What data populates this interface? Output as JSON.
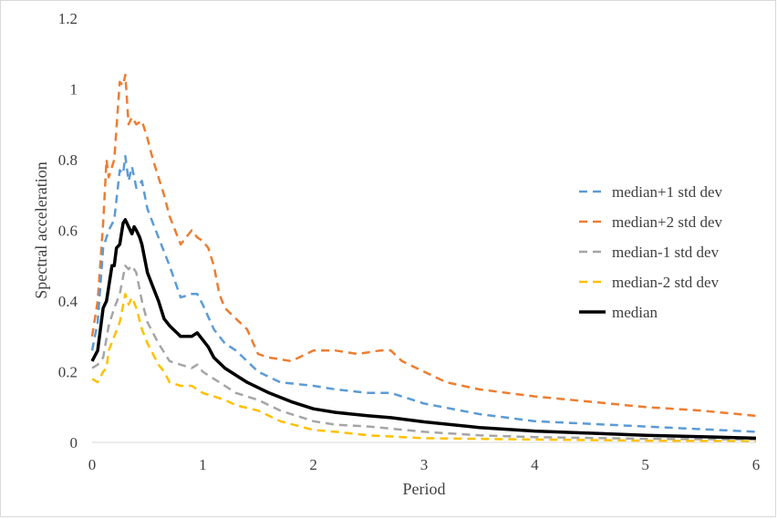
{
  "chart_data": {
    "type": "line",
    "title": "",
    "xlabel": "Period",
    "ylabel": "Spectral acceleration",
    "xlim": [
      0,
      6
    ],
    "ylim": [
      0,
      1.2
    ],
    "xticks": [
      "0",
      "1",
      "2",
      "3",
      "4",
      "5",
      "6"
    ],
    "yticks": [
      "0",
      "0.2",
      "0.4",
      "0.6",
      "0.8",
      "1",
      "1.2"
    ],
    "grid": false,
    "legend_position": "right",
    "series": [
      {
        "name": "median+1 std dev",
        "color": "#5b9bd5",
        "dash": "dashed",
        "x": [
          0,
          0.05,
          0.1,
          0.15,
          0.2,
          0.25,
          0.28,
          0.3,
          0.33,
          0.36,
          0.4,
          0.45,
          0.5,
          0.55,
          0.6,
          0.7,
          0.8,
          0.9,
          0.95,
          1.0,
          1.1,
          1.2,
          1.3,
          1.4,
          1.5,
          1.7,
          2.0,
          2.2,
          2.5,
          2.7,
          3.0,
          3.5,
          4.0,
          5.0,
          6.0
        ],
        "y": [
          0.26,
          0.34,
          0.55,
          0.6,
          0.63,
          0.77,
          0.76,
          0.81,
          0.74,
          0.78,
          0.72,
          0.74,
          0.66,
          0.62,
          0.58,
          0.5,
          0.41,
          0.42,
          0.42,
          0.39,
          0.32,
          0.28,
          0.26,
          0.23,
          0.2,
          0.17,
          0.16,
          0.15,
          0.14,
          0.14,
          0.11,
          0.08,
          0.06,
          0.045,
          0.03
        ]
      },
      {
        "name": "median+2 std dev",
        "color": "#ed7d31",
        "dash": "dashed",
        "x": [
          0,
          0.05,
          0.1,
          0.13,
          0.15,
          0.2,
          0.25,
          0.28,
          0.3,
          0.33,
          0.36,
          0.4,
          0.45,
          0.5,
          0.55,
          0.6,
          0.65,
          0.7,
          0.75,
          0.8,
          0.85,
          0.9,
          0.95,
          1.0,
          1.05,
          1.1,
          1.15,
          1.2,
          1.3,
          1.4,
          1.5,
          1.6,
          1.8,
          2.0,
          2.2,
          2.4,
          2.6,
          2.7,
          2.8,
          3.0,
          3.2,
          3.5,
          4.0,
          4.5,
          5.0,
          5.5,
          6.0
        ],
        "y": [
          0.3,
          0.4,
          0.62,
          0.8,
          0.75,
          0.8,
          1.02,
          1.01,
          1.04,
          0.9,
          0.92,
          0.9,
          0.91,
          0.86,
          0.8,
          0.75,
          0.7,
          0.64,
          0.6,
          0.56,
          0.58,
          0.6,
          0.58,
          0.57,
          0.55,
          0.5,
          0.42,
          0.38,
          0.35,
          0.32,
          0.25,
          0.24,
          0.23,
          0.26,
          0.26,
          0.25,
          0.26,
          0.26,
          0.23,
          0.2,
          0.17,
          0.15,
          0.13,
          0.115,
          0.1,
          0.09,
          0.075
        ]
      },
      {
        "name": "median-1 std dev",
        "color": "#a5a5a5",
        "dash": "dashed",
        "x": [
          0,
          0.05,
          0.1,
          0.15,
          0.2,
          0.25,
          0.3,
          0.33,
          0.36,
          0.4,
          0.45,
          0.5,
          0.55,
          0.6,
          0.7,
          0.8,
          0.9,
          0.95,
          1.0,
          1.1,
          1.2,
          1.3,
          1.4,
          1.5,
          1.7,
          2.0,
          2.2,
          2.5,
          3.0,
          3.5,
          4.0,
          5.0,
          6.0
        ],
        "y": [
          0.21,
          0.22,
          0.24,
          0.33,
          0.38,
          0.42,
          0.5,
          0.49,
          0.5,
          0.48,
          0.4,
          0.34,
          0.31,
          0.28,
          0.23,
          0.22,
          0.21,
          0.22,
          0.2,
          0.18,
          0.16,
          0.14,
          0.13,
          0.12,
          0.09,
          0.06,
          0.05,
          0.045,
          0.03,
          0.02,
          0.015,
          0.01,
          0.008
        ]
      },
      {
        "name": "median-2 std dev",
        "color": "#ffc000",
        "dash": "dashed",
        "x": [
          0,
          0.05,
          0.1,
          0.13,
          0.15,
          0.2,
          0.25,
          0.3,
          0.33,
          0.36,
          0.4,
          0.45,
          0.5,
          0.55,
          0.6,
          0.65,
          0.7,
          0.8,
          0.9,
          1.0,
          1.1,
          1.2,
          1.3,
          1.5,
          1.7,
          2.0,
          2.2,
          2.5,
          3.0,
          3.5,
          4.0,
          5.0,
          6.0
        ],
        "y": [
          0.18,
          0.17,
          0.2,
          0.21,
          0.26,
          0.3,
          0.34,
          0.42,
          0.39,
          0.41,
          0.38,
          0.32,
          0.28,
          0.25,
          0.22,
          0.2,
          0.17,
          0.16,
          0.16,
          0.14,
          0.13,
          0.12,
          0.105,
          0.09,
          0.06,
          0.035,
          0.03,
          0.02,
          0.012,
          0.01,
          0.008,
          0.005,
          0.003
        ]
      },
      {
        "name": "median",
        "color": "#000000",
        "dash": "solid",
        "x": [
          0,
          0.05,
          0.1,
          0.13,
          0.15,
          0.18,
          0.2,
          0.22,
          0.25,
          0.28,
          0.3,
          0.33,
          0.36,
          0.38,
          0.4,
          0.43,
          0.45,
          0.5,
          0.55,
          0.6,
          0.65,
          0.7,
          0.8,
          0.9,
          0.95,
          1.0,
          1.05,
          1.1,
          1.2,
          1.3,
          1.4,
          1.5,
          1.6,
          1.8,
          2.0,
          2.2,
          2.5,
          2.7,
          3.0,
          3.5,
          4.0,
          4.5,
          5.0,
          5.5,
          6.0
        ],
        "y": [
          0.23,
          0.26,
          0.38,
          0.4,
          0.44,
          0.5,
          0.5,
          0.55,
          0.56,
          0.62,
          0.63,
          0.61,
          0.59,
          0.61,
          0.6,
          0.58,
          0.56,
          0.48,
          0.44,
          0.4,
          0.35,
          0.33,
          0.3,
          0.3,
          0.31,
          0.29,
          0.27,
          0.24,
          0.21,
          0.19,
          0.17,
          0.155,
          0.14,
          0.115,
          0.095,
          0.085,
          0.075,
          0.07,
          0.058,
          0.042,
          0.032,
          0.026,
          0.02,
          0.016,
          0.012
        ]
      }
    ]
  }
}
